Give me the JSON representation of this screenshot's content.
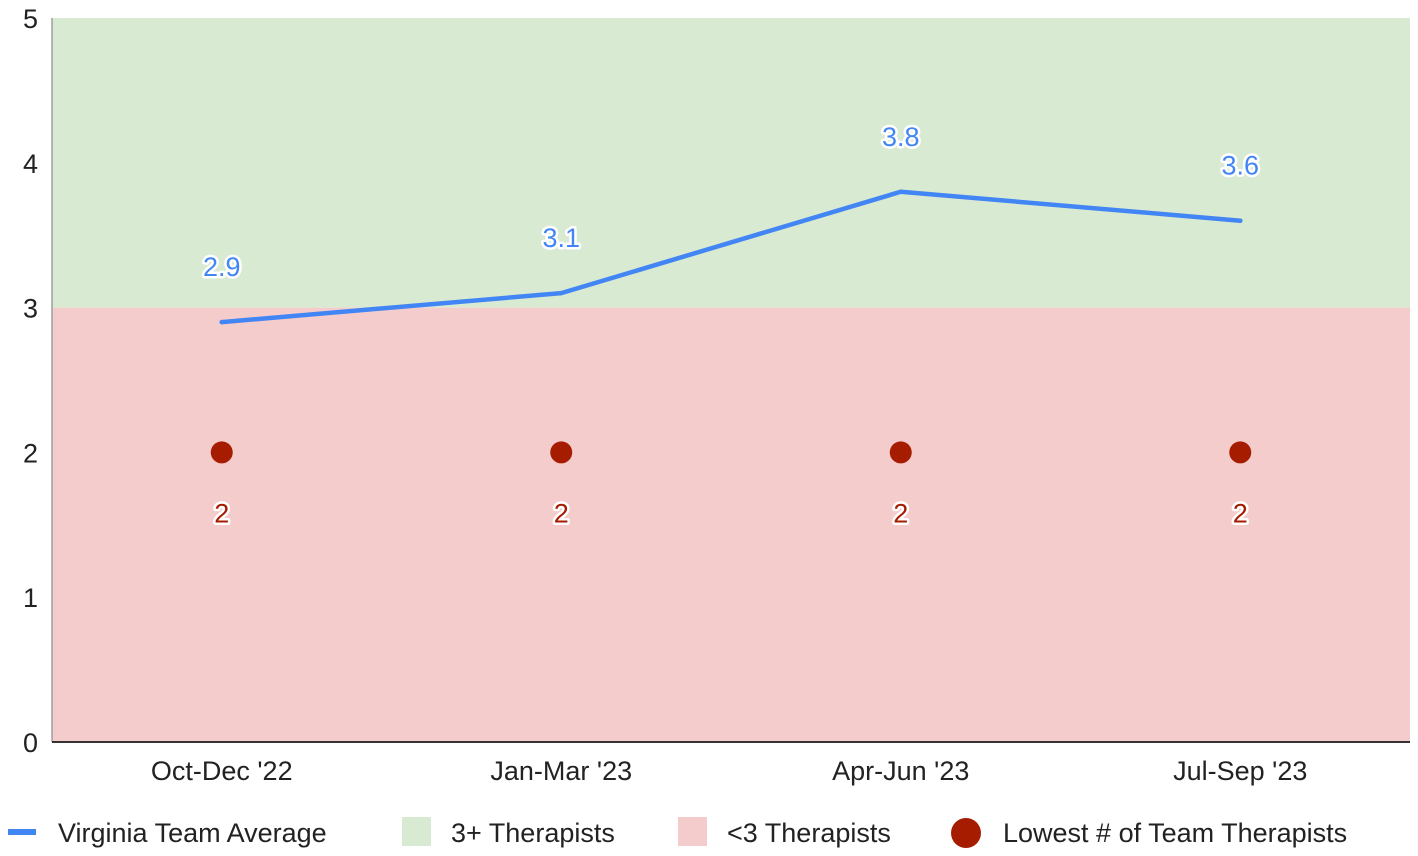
{
  "chart_data": {
    "type": "line",
    "title": "",
    "xlabel": "",
    "ylabel": "",
    "ylim": [
      0,
      5
    ],
    "yticks": [
      "0",
      "1",
      "2",
      "3",
      "4",
      "5"
    ],
    "categories": [
      "Oct-Dec '22",
      "Jan-Mar '23",
      "Apr-Jun '23",
      "Jul-Sep '23"
    ],
    "series": [
      {
        "name": "Virginia Team Average",
        "type": "line",
        "color": "#4285f4",
        "values": [
          2.9,
          3.1,
          3.8,
          3.6
        ],
        "labels": [
          "2.9",
          "3.1",
          "3.8",
          "3.6"
        ]
      },
      {
        "name": "Lowest # of Team Therapists",
        "type": "scatter",
        "color": "#a61c00",
        "values": [
          2,
          2,
          2,
          2
        ],
        "labels": [
          "2",
          "2",
          "2",
          "2"
        ]
      }
    ],
    "bands": [
      {
        "name": "3+ Therapists",
        "from": 3,
        "to": 5,
        "color": "#d9ead3"
      },
      {
        "name": "<3 Therapists",
        "from": 0,
        "to": 3,
        "color": "#f4cccc"
      }
    ],
    "grid": false,
    "legend_position": "bottom"
  },
  "legend": [
    {
      "label": "Virginia Team Average",
      "kind": "line",
      "color": "#4285f4"
    },
    {
      "label": "3+ Therapists",
      "kind": "box",
      "color": "#d9ead3"
    },
    {
      "label": "<3 Therapists",
      "kind": "box",
      "color": "#f4cccc"
    },
    {
      "label": "Lowest # of Team Therapists",
      "kind": "dot",
      "color": "#a61c00"
    }
  ]
}
